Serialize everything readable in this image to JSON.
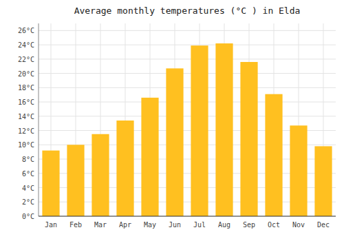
{
  "chart_data": {
    "type": "bar",
    "title": "Average monthly temperatures (°C ) in Elda",
    "categories": [
      "Jan",
      "Feb",
      "Mar",
      "Apr",
      "May",
      "Jun",
      "Jul",
      "Aug",
      "Sep",
      "Oct",
      "Nov",
      "Dec"
    ],
    "values": [
      9.2,
      10.0,
      11.5,
      13.4,
      16.6,
      20.7,
      23.9,
      24.2,
      21.6,
      17.1,
      12.7,
      9.8
    ],
    "color": "#FFC020",
    "ylim": [
      0,
      27
    ],
    "yticks": [
      {
        "value": 0,
        "label": "0°C"
      },
      {
        "value": 2,
        "label": "2°C"
      },
      {
        "value": 4,
        "label": "4°C"
      },
      {
        "value": 6,
        "label": "6°C"
      },
      {
        "value": 8,
        "label": "8°C"
      },
      {
        "value": 10,
        "label": "10°C"
      },
      {
        "value": 12,
        "label": "12°C"
      },
      {
        "value": 14,
        "label": "14°C"
      },
      {
        "value": 16,
        "label": "16°C"
      },
      {
        "value": 18,
        "label": "18°C"
      },
      {
        "value": 20,
        "label": "20°C"
      },
      {
        "value": 22,
        "label": "22°C"
      },
      {
        "value": 24,
        "label": "24°C"
      },
      {
        "value": 26,
        "label": "26°C"
      }
    ],
    "grid": true
  }
}
